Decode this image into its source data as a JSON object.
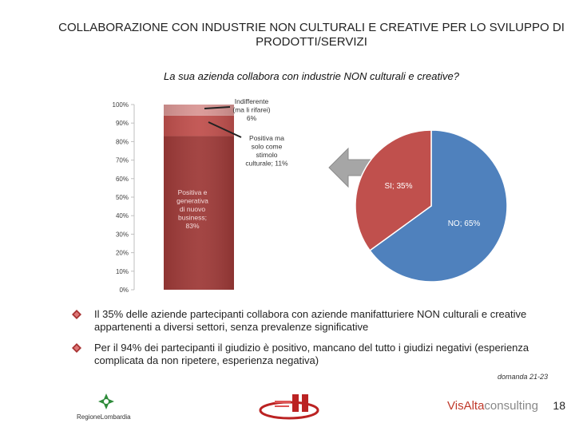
{
  "header": {
    "title": "COLLABORAZIONE CON INDUSTRIE NON CULTURALI E CREATIVE PER LO SVILUPPO DI PRODOTTI/SERVIZI",
    "subtitle": "La sua azienda collabora con industrie NON culturali e creative?"
  },
  "colors": {
    "dark_red": "#9e3a38",
    "mid_red": "#c0504d",
    "pink": "#d99694",
    "blue": "#4f81bd",
    "arrow_gray": "#a6a6a6"
  },
  "chart_data": [
    {
      "type": "bar",
      "stacked": true,
      "categories": [
        ""
      ],
      "ylim": [
        0,
        100
      ],
      "yticks": [
        "0%",
        "10%",
        "20%",
        "30%",
        "40%",
        "50%",
        "60%",
        "70%",
        "80%",
        "90%",
        "100%"
      ],
      "series": [
        {
          "name": "Positiva e generativa di nuovo business",
          "values": [
            83
          ],
          "label": "Positiva e generativa di nuovo business; 83%",
          "color": "#9e3a38"
        },
        {
          "name": "Positiva ma solo come stimolo culturale",
          "values": [
            11
          ],
          "label": "Positiva ma solo come stimolo culturale; 11%",
          "color": "#c0504d"
        },
        {
          "name": "Indifferente (ma li rifarei)",
          "values": [
            6
          ],
          "label": "Indifferente (ma li rifarei); 6%",
          "color": "#d99694"
        }
      ],
      "grid": false
    },
    {
      "type": "pie",
      "slices": [
        {
          "name": "SI",
          "value": 35,
          "label": "SI; 35%",
          "color": "#c0504d"
        },
        {
          "name": "NO",
          "value": 65,
          "label": "NO; 65%",
          "color": "#4f81bd"
        }
      ]
    }
  ],
  "bullets": [
    "Il 35% delle aziende partecipanti collabora con aziende manifatturiere NON culturali e creative appartenenti a diversi settori, senza prevalenze significative",
    "Per il 94% dei partecipanti il giudizio è positivo, mancano del tutto i giudizi negativi (esperienza complicata da non ripetere, esperienza negativa)"
  ],
  "footer": {
    "footnote": "domanda 21-23",
    "page_number": "18",
    "logo_left_caption": "RegioneLombardia",
    "logo_right_prefix": "VisAlta",
    "logo_right_suffix": "consulting"
  }
}
